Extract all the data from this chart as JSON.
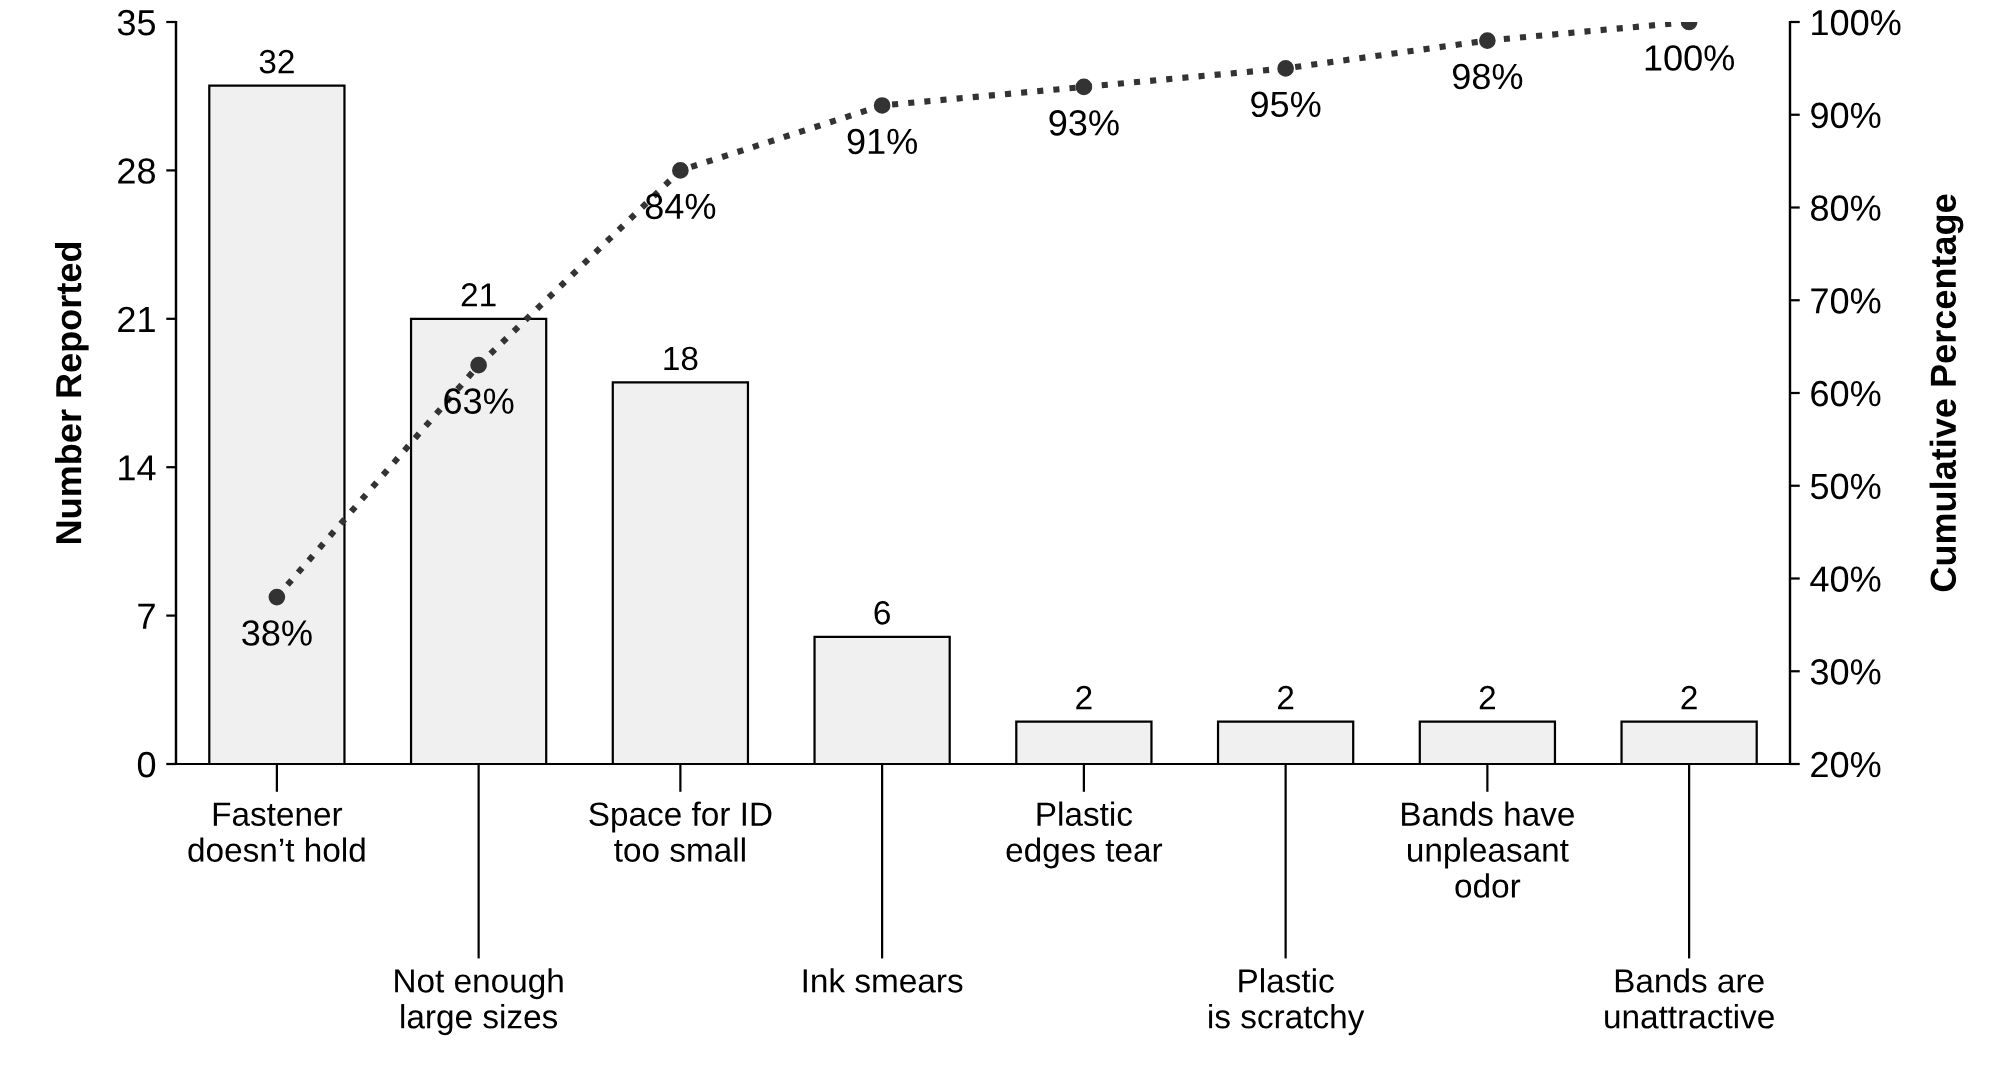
{
  "chart_data": {
    "type": "bar",
    "ylabel": "Number Reported",
    "y2label": "Cumulative Percentage",
    "categories": [
      "Fastener\ndoesn’t hold",
      "Not enough\nlarge sizes",
      "Space for ID\ntoo small",
      "Ink smears",
      "Plastic\nedges tear",
      "Plastic\nis scratchy",
      "Bands have\nunpleasant\nodor",
      "Bands are\nunattractive"
    ],
    "series": [
      {
        "color": "#f0f0f0",
        "values": [
          32,
          21,
          18,
          6,
          2,
          2,
          2,
          2
        ]
      },
      {
        "type": "line",
        "axis": "y2",
        "color": "#333333",
        "values": [
          38,
          63,
          84,
          91,
          93,
          95,
          98,
          100
        ],
        "value_labels": [
          "38%",
          "63%",
          "84%",
          "91%",
          "93%",
          "95%",
          "98%",
          "100%"
        ]
      }
    ],
    "data_labels": true,
    "marker": "circle",
    "line_style": "dotted",
    "ylim": [
      0,
      35
    ],
    "yticks": [
      0,
      7,
      14,
      21,
      28,
      35
    ],
    "y2lim": [
      20,
      100
    ],
    "y2ticks": [
      {
        "value": 20,
        "label": "20%"
      },
      {
        "value": 30,
        "label": "30%"
      },
      {
        "value": 40,
        "label": "40%"
      },
      {
        "value": 50,
        "label": "50%"
      },
      {
        "value": 60,
        "label": "60%"
      },
      {
        "value": 70,
        "label": "70%"
      },
      {
        "value": 80,
        "label": "80%"
      },
      {
        "value": 90,
        "label": "90%"
      },
      {
        "value": 100,
        "label": "100%"
      }
    ],
    "grid": false,
    "legend": false
  }
}
